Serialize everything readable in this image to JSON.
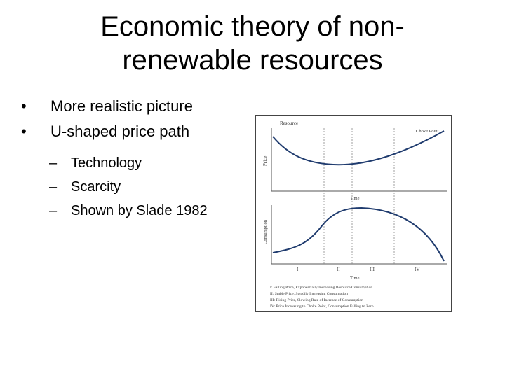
{
  "slide": {
    "title_line1": "Economic theory of non-",
    "title_line2": "renewable resources",
    "bullets": [
      "More realistic picture",
      "U-shaped price path"
    ],
    "sub_bullets": [
      "Technology",
      "Scarcity",
      "Shown by Slade 1982"
    ],
    "bullet_marker": "•",
    "sub_bullet_marker": "–"
  },
  "figure": {
    "top_panel": {
      "corner_label": "Resource",
      "y_label": "Price",
      "x_label": "Time",
      "end_label": "Choke Point"
    },
    "bottom_panel": {
      "y_label": "Consumption",
      "x_label": "Time"
    },
    "stages": [
      "I",
      "II",
      "III",
      "IV"
    ],
    "legend": [
      "I:   Falling Price, Exponentially Increasing Resource Consumption",
      "II:  Stable Price, Steadily Increasing Consumption",
      "III: Rising Price, Slowing Rate of Increase of Consumption",
      "IV: Price Increasing to Choke Point, Consumption Falling to Zero"
    ],
    "curve_color": "#1f3b6e"
  }
}
